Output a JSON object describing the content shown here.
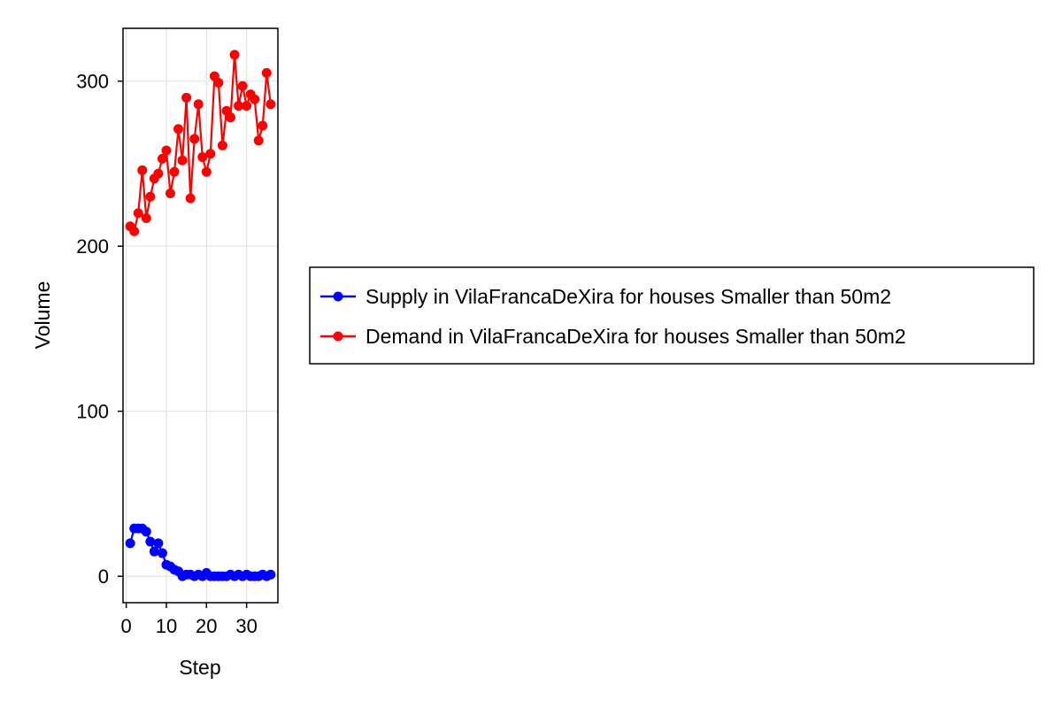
{
  "chart_data": {
    "type": "line",
    "xlabel": "Step",
    "ylabel": "Volume",
    "xlim": [
      -0.8,
      37.8
    ],
    "ylim": [
      -16,
      332
    ],
    "xticks": [
      0,
      10,
      20,
      30
    ],
    "yticks": [
      0,
      100,
      200,
      300
    ],
    "grid": true,
    "legend_position": "right",
    "x": [
      1,
      2,
      3,
      4,
      5,
      6,
      7,
      8,
      9,
      10,
      11,
      12,
      13,
      14,
      15,
      16,
      17,
      18,
      19,
      20,
      21,
      22,
      23,
      24,
      25,
      26,
      27,
      28,
      29,
      30,
      31,
      32,
      33,
      34,
      35,
      36
    ],
    "series": [
      {
        "name": "Supply in VilaFrancaDeXira for houses Smaller than 50m2",
        "color": "#0000ff",
        "values": [
          20,
          29,
          29,
          29,
          27,
          21,
          15,
          20,
          14,
          7,
          6,
          4,
          3,
          0,
          1,
          1,
          0,
          1,
          0,
          2,
          0,
          0,
          0,
          0,
          0,
          1,
          0,
          1,
          0,
          1,
          0,
          0,
          0,
          1,
          0,
          1
        ]
      },
      {
        "name": "Demand in VilaFrancaDeXira for houses Smaller than 50m2",
        "color": "#ff0000",
        "values": [
          212,
          209,
          220,
          246,
          217,
          230,
          241,
          244,
          253,
          258,
          232,
          245,
          271,
          252,
          290,
          229,
          265,
          286,
          254,
          245,
          256,
          303,
          299,
          261,
          282,
          278,
          316,
          285,
          297,
          285,
          292,
          289,
          264,
          273,
          305,
          286
        ]
      }
    ]
  }
}
